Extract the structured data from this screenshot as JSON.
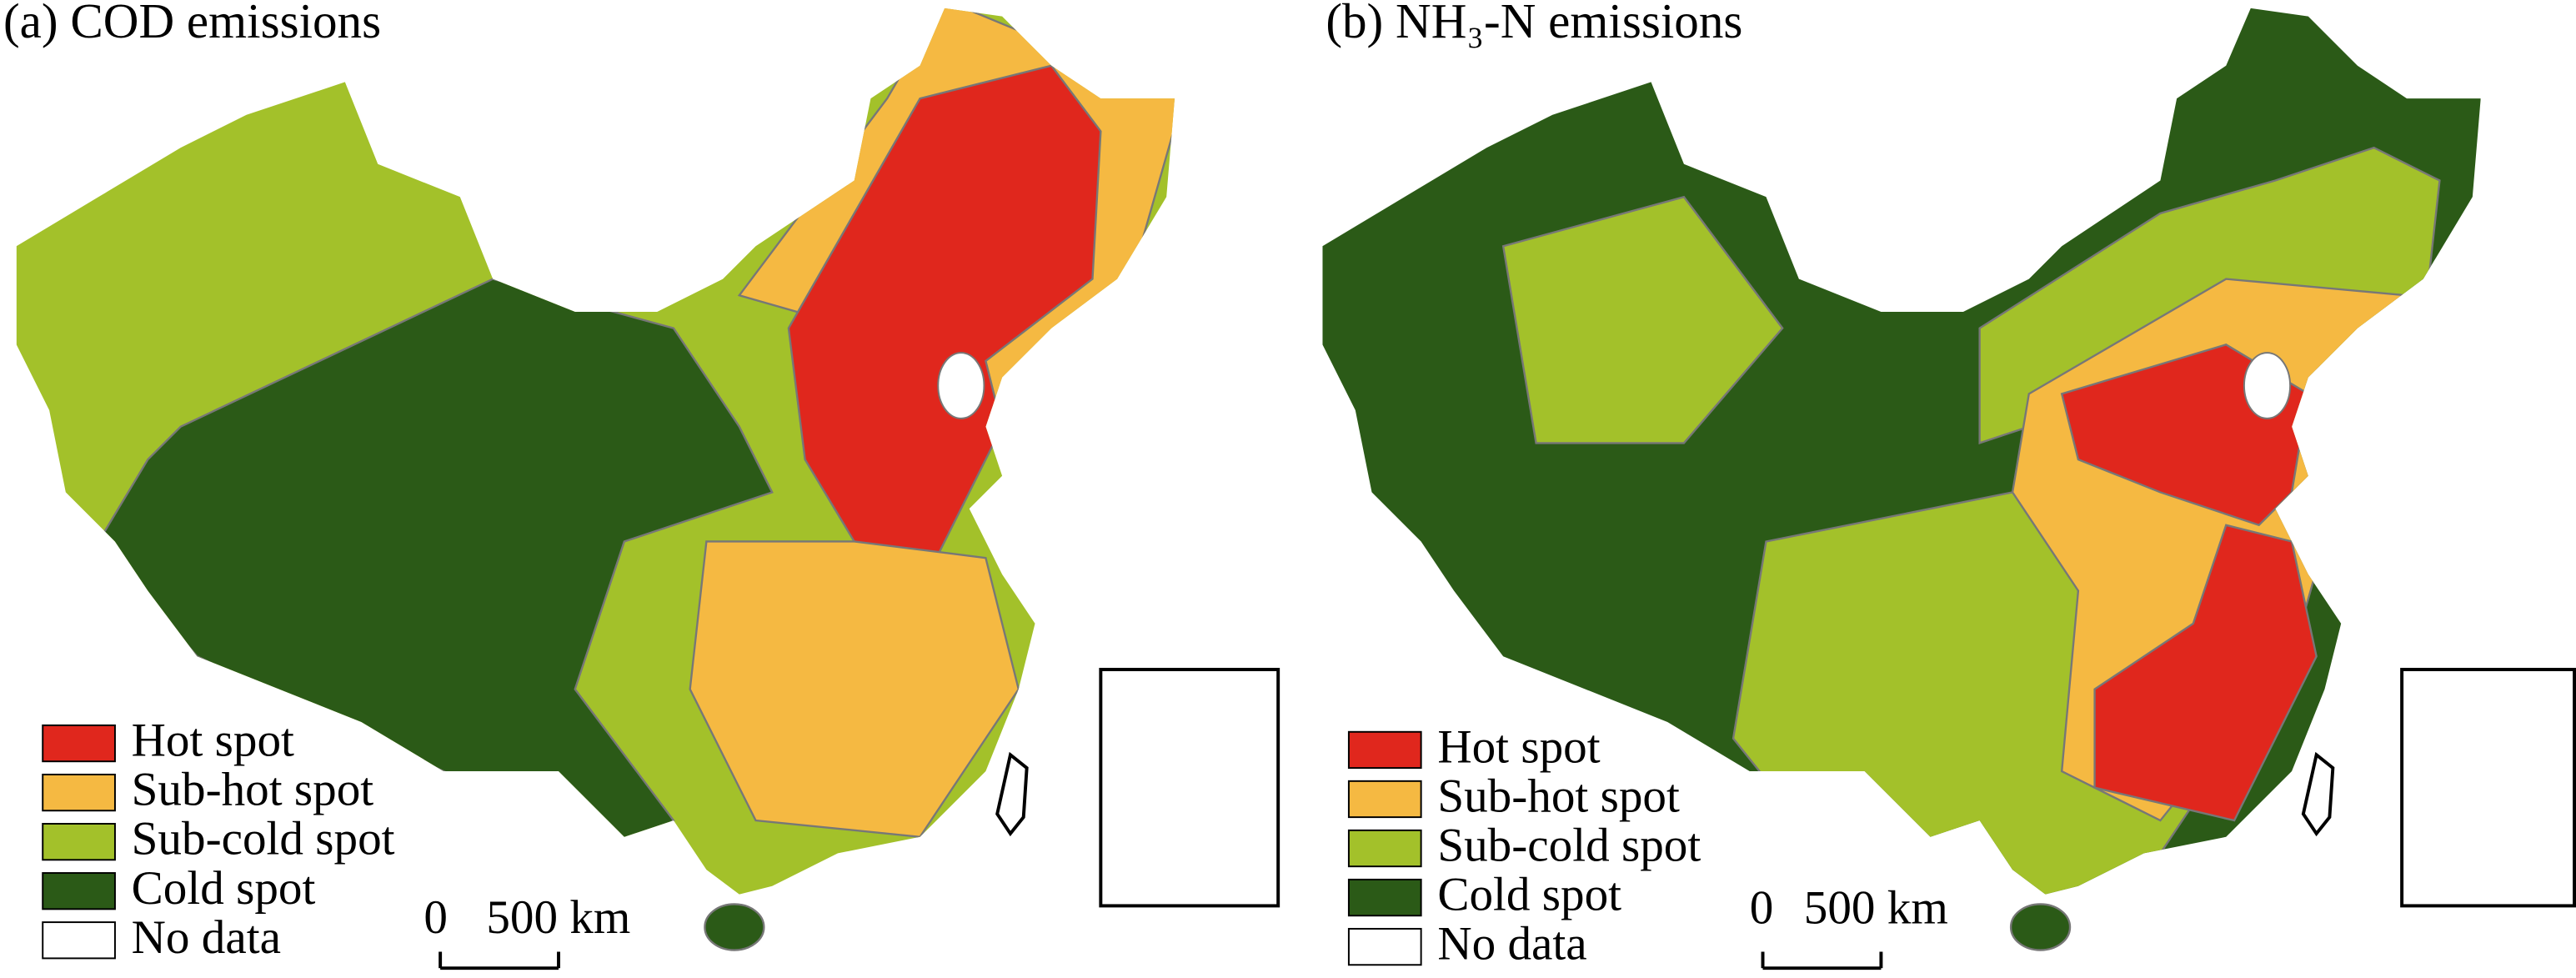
{
  "panels": [
    {
      "title": "(a) COD emissions",
      "legend": [
        {
          "label": "Hot spot",
          "color": "#e0271d"
        },
        {
          "label": "Sub-hot spot",
          "color": "#f5b942"
        },
        {
          "label": "Sub-cold spot",
          "color": "#a3c12a"
        },
        {
          "label": "Cold spot",
          "color": "#2b5a17"
        },
        {
          "label": "No data",
          "color": "#ffffff"
        }
      ],
      "scale_labels": [
        "0",
        "500 km"
      ]
    },
    {
      "title": "(b) NH₃-N emissions",
      "legend": [
        {
          "label": "Hot spot",
          "color": "#e0271d"
        },
        {
          "label": "Sub-hot spot",
          "color": "#f5b942"
        },
        {
          "label": "Sub-cold spot",
          "color": "#a3c12a"
        },
        {
          "label": "Cold spot",
          "color": "#2b5a17"
        },
        {
          "label": "No data",
          "color": "#ffffff"
        }
      ],
      "scale_labels": [
        "0",
        "500 km"
      ]
    }
  ]
}
